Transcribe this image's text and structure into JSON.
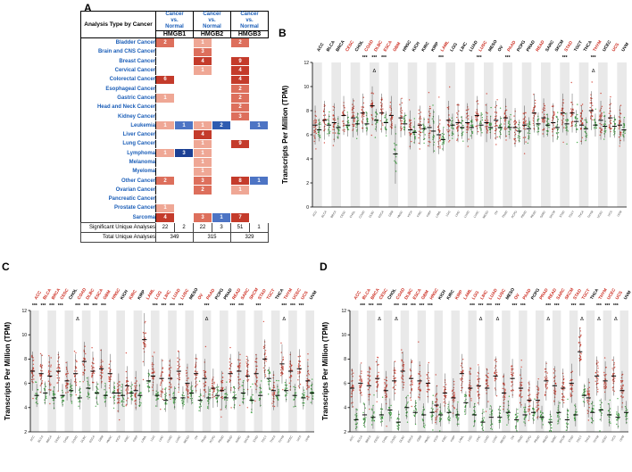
{
  "figure": {
    "panel_labels": [
      "A",
      "B",
      "C",
      "D"
    ]
  },
  "table": {
    "corner_header": "Analysis Type by Cancer",
    "comparison_lines": [
      "Cancer",
      "vs.",
      "Normal"
    ],
    "genes": [
      "HMGB1",
      "HMGB2",
      "HMGB3"
    ],
    "rows": [
      {
        "cancer": "Bladder Cancer",
        "cells": [
          2,
          null,
          1,
          null,
          2,
          null
        ]
      },
      {
        "cancer": "Brain and CNS Cancer",
        "cells": [
          null,
          null,
          3,
          null,
          null,
          null
        ]
      },
      {
        "cancer": "Breast Cancer",
        "cells": [
          null,
          null,
          4,
          null,
          9,
          null
        ]
      },
      {
        "cancer": "Cervical Cancer",
        "cells": [
          null,
          null,
          1,
          null,
          4,
          null
        ]
      },
      {
        "cancer": "Colorectal Cancer",
        "cells": [
          6,
          null,
          null,
          null,
          4,
          null
        ]
      },
      {
        "cancer": "Esophageal Cancer",
        "cells": [
          null,
          null,
          null,
          null,
          2,
          null
        ]
      },
      {
        "cancer": "Gastric Cancer",
        "cells": [
          1,
          null,
          null,
          null,
          2,
          null
        ]
      },
      {
        "cancer": "Head and Neck Cancer",
        "cells": [
          null,
          null,
          null,
          null,
          2,
          null
        ]
      },
      {
        "cancer": "Kidney Cancer",
        "cells": [
          null,
          null,
          null,
          null,
          3,
          null
        ]
      },
      {
        "cancer": "Leukemia",
        "cells": [
          1,
          1,
          1,
          2,
          null,
          1
        ]
      },
      {
        "cancer": "Liver Cancer",
        "cells": [
          null,
          null,
          4,
          null,
          null,
          null
        ]
      },
      {
        "cancer": "Lung Cancer",
        "cells": [
          null,
          null,
          1,
          null,
          9,
          null
        ]
      },
      {
        "cancer": "Lymphoma",
        "cells": [
          1,
          3,
          1,
          null,
          null,
          null
        ]
      },
      {
        "cancer": "Melanoma",
        "cells": [
          null,
          null,
          1,
          null,
          null,
          null
        ]
      },
      {
        "cancer": "Myeloma",
        "cells": [
          null,
          null,
          1,
          null,
          null,
          null
        ]
      },
      {
        "cancer": "Other Cancer",
        "cells": [
          2,
          null,
          3,
          null,
          8,
          1
        ]
      },
      {
        "cancer": "Ovarian Cancer",
        "cells": [
          null,
          null,
          2,
          null,
          1,
          null
        ]
      },
      {
        "cancer": "Pancreatic Cancer",
        "cells": [
          null,
          null,
          null,
          null,
          null,
          null
        ]
      },
      {
        "cancer": "Prostate Cancer",
        "cells": [
          1,
          null,
          null,
          null,
          null,
          null
        ]
      },
      {
        "cancer": "Sarcoma",
        "cells": [
          4,
          null,
          3,
          1,
          7,
          null
        ]
      }
    ],
    "significant_row": {
      "label": "Significant Unique Analyses",
      "values": [
        22,
        2,
        22,
        3,
        51,
        1
      ]
    },
    "total_row": {
      "label": "Total Unique Analyses",
      "values": [
        349,
        315,
        329
      ]
    },
    "cell_colors": {
      "up_high": "#c43b2b",
      "up_mid": "#dd6f5c",
      "up_low": "#efa795",
      "down_high": "#1b3f93",
      "down_mid": "#2f5cb0",
      "down_low": "#4d74c4"
    },
    "label_text_color": "#1b5eb8"
  },
  "chart_data": [
    {
      "panel": "B",
      "type": "strip",
      "ylabel": "Transcripts Per Million (TPM)",
      "ylim": [
        0,
        12
      ],
      "yticks": [
        0,
        2,
        4,
        6,
        8,
        10,
        12
      ],
      "tumor_color": "#cf3a2c",
      "normal_color": "#2f9e33",
      "red_label_color": "#cc2a1e",
      "categories": [
        "ACC",
        "BLCA",
        "BRCA",
        "CESC",
        "CHOL",
        "COAD",
        "DLBC",
        "ESCA",
        "GBM",
        "HNSC",
        "KICH",
        "KIRC",
        "KIRP",
        "LAML",
        "LGG",
        "LIHC",
        "LUAD",
        "LUSC",
        "MESO",
        "OV",
        "PAAD",
        "PCPG",
        "PRAD",
        "READ",
        "SARC",
        "SKCM",
        "STAD",
        "TGCT",
        "THCA",
        "THYM",
        "UCEC",
        "UCS",
        "UVM"
      ],
      "label_colors": [
        "black",
        "black",
        "black",
        "red",
        "black",
        "red",
        "red",
        "red",
        "red",
        "black",
        "black",
        "black",
        "black",
        "red",
        "black",
        "black",
        "black",
        "red",
        "black",
        "black",
        "red",
        "black",
        "black",
        "red",
        "black",
        "black",
        "red",
        "black",
        "black",
        "red",
        "black",
        "red",
        "black"
      ],
      "significance": [
        "",
        "",
        "",
        "",
        "",
        "***",
        "***",
        "***",
        "",
        "",
        "",
        "",
        "",
        "***",
        "",
        "",
        "",
        "***",
        "",
        "",
        "***",
        "",
        "",
        "",
        "",
        "",
        "***",
        "",
        "",
        "***",
        "",
        "",
        ""
      ],
      "delta": [
        false,
        false,
        false,
        false,
        false,
        false,
        true,
        false,
        false,
        false,
        false,
        false,
        false,
        false,
        false,
        false,
        false,
        false,
        false,
        false,
        false,
        false,
        false,
        false,
        false,
        false,
        false,
        false,
        false,
        true,
        false,
        false,
        false
      ],
      "tumor_median": [
        6.8,
        7.2,
        7.0,
        7.6,
        7.4,
        7.8,
        8.4,
        7.8,
        7.6,
        7.4,
        6.4,
        6.8,
        6.6,
        6.0,
        7.2,
        7.0,
        7.0,
        7.6,
        7.0,
        7.2,
        7.4,
        6.6,
        6.8,
        7.8,
        7.4,
        7.0,
        7.8,
        7.8,
        6.8,
        8.0,
        7.2,
        7.4,
        6.8
      ],
      "normal_median": [
        6.4,
        6.8,
        6.6,
        6.8,
        6.9,
        6.9,
        7.2,
        7.0,
        4.4,
        6.9,
        6.2,
        6.5,
        6.3,
        5.6,
        6.8,
        6.6,
        6.6,
        6.8,
        6.6,
        6.6,
        6.6,
        6.3,
        6.5,
        6.9,
        6.8,
        6.6,
        6.9,
        7.1,
        6.5,
        6.8,
        6.7,
        6.7,
        6.4
      ],
      "normal_spread_overrides": {
        "8": 1.3,
        "12": 0.95
      }
    },
    {
      "panel": "C",
      "type": "strip",
      "ylabel": "Transcripts Per Million (TPM)",
      "ylim": [
        2,
        12
      ],
      "yticks": [
        2,
        4,
        6,
        8,
        10,
        12
      ],
      "tumor_color": "#cf3a2c",
      "normal_color": "#2f9e33",
      "red_label_color": "#cc2a1e",
      "categories": [
        "ACC",
        "BLCA",
        "BRCA",
        "CESC",
        "CHOL",
        "COAD",
        "DLBC",
        "ESCA",
        "GBM",
        "HNSC",
        "KICH",
        "KIRC",
        "KIRP",
        "LAML",
        "LGG",
        "LIHC",
        "LUAD",
        "LUSC",
        "MESO",
        "OV",
        "PAAD",
        "PCPG",
        "PRAD",
        "READ",
        "SARC",
        "SKCM",
        "STAD",
        "TGCT",
        "THCA",
        "THYM",
        "UCEC",
        "UCS",
        "UVM"
      ],
      "label_colors": [
        "red",
        "red",
        "red",
        "red",
        "black",
        "red",
        "red",
        "red",
        "red",
        "red",
        "black",
        "red",
        "black",
        "red",
        "red",
        "red",
        "red",
        "red",
        "black",
        "red",
        "red",
        "black",
        "black",
        "red",
        "red",
        "red",
        "red",
        "red",
        "black",
        "red",
        "red",
        "red",
        "black"
      ],
      "significance": [
        "***",
        "***",
        "***",
        "***",
        "",
        "***",
        "***",
        "***",
        "***",
        "",
        "",
        "",
        "",
        "",
        "***",
        "***",
        "***",
        "***",
        "",
        "",
        "***",
        "",
        "",
        "***",
        "***",
        "",
        "***",
        "",
        "",
        "***",
        "***",
        "***",
        ""
      ],
      "delta": [
        false,
        false,
        false,
        false,
        false,
        true,
        false,
        false,
        false,
        false,
        false,
        false,
        false,
        false,
        false,
        false,
        false,
        false,
        false,
        false,
        true,
        false,
        false,
        false,
        false,
        false,
        false,
        false,
        false,
        true,
        false,
        false,
        false
      ],
      "tumor_median": [
        7.0,
        6.8,
        6.6,
        7.0,
        6.2,
        6.8,
        7.8,
        7.0,
        7.2,
        6.8,
        5.2,
        5.8,
        5.4,
        9.6,
        6.6,
        6.4,
        6.4,
        7.0,
        6.0,
        6.8,
        6.4,
        5.6,
        5.4,
        6.8,
        7.0,
        6.6,
        6.8,
        8.0,
        5.4,
        7.6,
        7.0,
        7.2,
        6.2
      ],
      "normal_median": [
        5.0,
        5.2,
        4.8,
        5.0,
        5.4,
        4.8,
        5.6,
        5.2,
        5.0,
        5.2,
        5.0,
        5.2,
        5.0,
        6.2,
        5.0,
        4.6,
        4.8,
        4.8,
        5.2,
        4.6,
        4.8,
        5.0,
        4.8,
        4.8,
        5.2,
        4.6,
        5.0,
        6.4,
        5.0,
        5.4,
        5.0,
        4.8,
        5.2
      ],
      "tumor_spread_overrides": {
        "13": 1.15
      }
    },
    {
      "panel": "D",
      "type": "strip",
      "ylabel": "Transcripts Per Million (TPM)",
      "ylim": [
        2,
        12
      ],
      "yticks": [
        2,
        4,
        6,
        8,
        10,
        12
      ],
      "tumor_color": "#cf3a2c",
      "normal_color": "#2f9e33",
      "red_label_color": "#cc2a1e",
      "categories": [
        "ACC",
        "BLCA",
        "BRCA",
        "CESC",
        "CHOL",
        "COAD",
        "DLBC",
        "ESCA",
        "GBM",
        "HNSC",
        "KICH",
        "KIRC",
        "KIRP",
        "LAML",
        "LGG",
        "LIHC",
        "LUAD",
        "LUSC",
        "MESO",
        "OV",
        "PAAD",
        "PCPG",
        "PRAD",
        "READ",
        "SARC",
        "SKCM",
        "STAD",
        "TGCT",
        "THCA",
        "THYM",
        "UCEC",
        "UCS",
        "UVM"
      ],
      "label_colors": [
        "red",
        "red",
        "red",
        "red",
        "black",
        "red",
        "red",
        "red",
        "red",
        "red",
        "black",
        "black",
        "red",
        "red",
        "red",
        "red",
        "red",
        "red",
        "black",
        "red",
        "red",
        "black",
        "red",
        "red",
        "red",
        "red",
        "red",
        "red",
        "black",
        "red",
        "red",
        "red",
        "black"
      ],
      "significance": [
        "",
        "***",
        "***",
        "***",
        "",
        "***",
        "***",
        "***",
        "***",
        "***",
        "",
        "",
        "",
        "",
        "***",
        "***",
        "***",
        "***",
        "",
        "***",
        "***",
        "",
        "",
        "***",
        "***",
        "",
        "***",
        "***",
        "",
        "***",
        "***",
        "***",
        ""
      ],
      "delta": [
        false,
        false,
        false,
        true,
        false,
        true,
        false,
        false,
        false,
        false,
        false,
        false,
        false,
        false,
        false,
        true,
        false,
        true,
        false,
        false,
        false,
        false,
        false,
        true,
        false,
        false,
        false,
        true,
        false,
        true,
        false,
        true,
        false
      ],
      "tumor_median": [
        5.6,
        6.0,
        5.8,
        6.4,
        5.4,
        6.2,
        7.0,
        6.4,
        6.2,
        6.0,
        4.2,
        5.2,
        4.8,
        6.8,
        5.6,
        5.8,
        5.6,
        6.6,
        5.2,
        6.4,
        5.6,
        4.6,
        4.6,
        6.2,
        5.8,
        5.6,
        6.0,
        8.6,
        4.8,
        6.6,
        6.2,
        6.6,
        5.4
      ],
      "normal_median": [
        3.0,
        3.4,
        3.2,
        3.4,
        3.8,
        2.8,
        4.0,
        3.6,
        3.4,
        3.6,
        3.4,
        3.6,
        3.4,
        4.4,
        3.4,
        2.8,
        3.2,
        3.2,
        3.6,
        3.0,
        3.4,
        3.6,
        3.2,
        2.8,
        3.6,
        3.0,
        3.4,
        5.0,
        3.6,
        3.8,
        3.4,
        3.2,
        3.6
      ],
      "tumor_spread_overrides": {
        "27": 1.05
      }
    }
  ]
}
